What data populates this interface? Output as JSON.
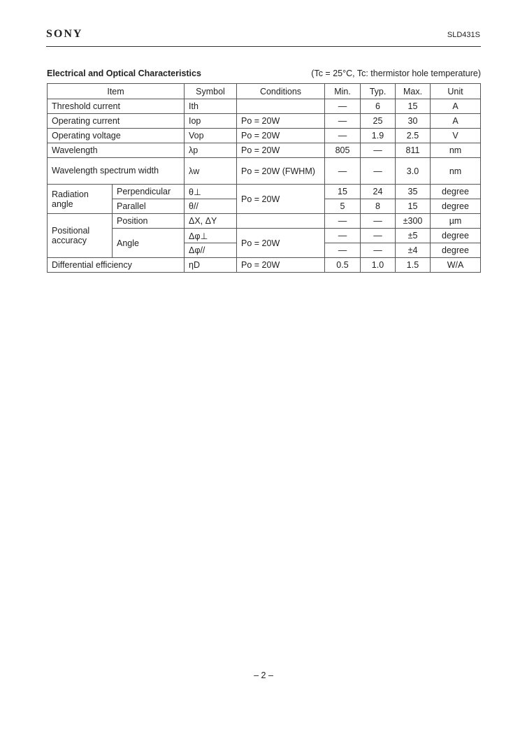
{
  "header": {
    "logo": "SONY",
    "part_number": "SLD431S"
  },
  "section": {
    "title": "Electrical and Optical Characteristics",
    "conditions": "(Tc = 25°C, Tc: thermistor hole temperature)"
  },
  "table": {
    "columns": [
      "Item",
      "Symbol",
      "Conditions",
      "Min.",
      "Typ.",
      "Max.",
      "Unit"
    ],
    "rows": [
      {
        "item": "Threshold current",
        "symbol": "Ith",
        "conditions": "",
        "min": "—",
        "typ": "6",
        "max": "15",
        "unit": "A"
      },
      {
        "item": "Operating current",
        "symbol": "Iop",
        "conditions": "Po = 20W",
        "min": "—",
        "typ": "25",
        "max": "30",
        "unit": "A"
      },
      {
        "item": "Operating voltage",
        "symbol": "Vop",
        "conditions": "Po = 20W",
        "min": "—",
        "typ": "1.9",
        "max": "2.5",
        "unit": "V"
      },
      {
        "item": "Wavelength",
        "symbol": "λp",
        "conditions": "Po = 20W",
        "min": "805",
        "typ": "—",
        "max": "811",
        "unit": "nm"
      },
      {
        "item": "Wavelength spectrum width",
        "symbol": "λw",
        "conditions": "Po = 20W (FWHM)",
        "min": "—",
        "typ": "—",
        "max": "3.0",
        "unit": "nm"
      }
    ],
    "radiation": {
      "item": "Radiation angle",
      "conditions": "Po = 20W",
      "rows": [
        {
          "sub": "Perpendicular",
          "symbol": "θ⊥",
          "min": "15",
          "typ": "24",
          "max": "35",
          "unit": "degree"
        },
        {
          "sub": "Parallel",
          "symbol": "θ//",
          "min": "5",
          "typ": "8",
          "max": "15",
          "unit": "degree"
        }
      ]
    },
    "positional": {
      "item": "Positional accuracy",
      "position": {
        "sub": "Position",
        "symbol": "ΔX, ΔY",
        "conditions": "",
        "min": "—",
        "typ": "—",
        "max": "±300",
        "unit": "µm"
      },
      "angle": {
        "sub": "Angle",
        "conditions": "Po = 20W",
        "rows": [
          {
            "symbol": "Δφ⊥",
            "min": "—",
            "typ": "—",
            "max": "±5",
            "unit": "degree"
          },
          {
            "symbol": "Δφ//",
            "min": "—",
            "typ": "—",
            "max": "±4",
            "unit": "degree"
          }
        ]
      }
    },
    "efficiency": {
      "item": "Differential efficiency",
      "symbol": "ηD",
      "conditions": "Po = 20W",
      "min": "0.5",
      "typ": "1.0",
      "max": "1.5",
      "unit": "W/A"
    }
  },
  "footer": {
    "page": "– 2 –"
  }
}
